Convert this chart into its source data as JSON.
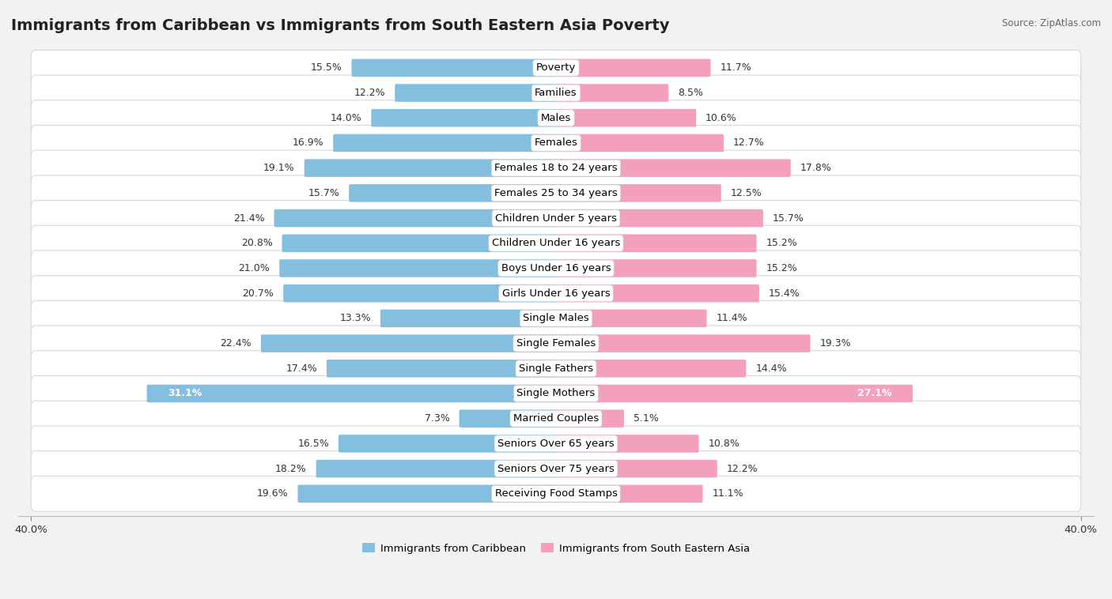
{
  "title": "Immigrants from Caribbean vs Immigrants from South Eastern Asia Poverty",
  "source": "Source: ZipAtlas.com",
  "categories": [
    "Poverty",
    "Families",
    "Males",
    "Females",
    "Females 18 to 24 years",
    "Females 25 to 34 years",
    "Children Under 5 years",
    "Children Under 16 years",
    "Boys Under 16 years",
    "Girls Under 16 years",
    "Single Males",
    "Single Females",
    "Single Fathers",
    "Single Mothers",
    "Married Couples",
    "Seniors Over 65 years",
    "Seniors Over 75 years",
    "Receiving Food Stamps"
  ],
  "left_values": [
    15.5,
    12.2,
    14.0,
    16.9,
    19.1,
    15.7,
    21.4,
    20.8,
    21.0,
    20.7,
    13.3,
    22.4,
    17.4,
    31.1,
    7.3,
    16.5,
    18.2,
    19.6
  ],
  "right_values": [
    11.7,
    8.5,
    10.6,
    12.7,
    17.8,
    12.5,
    15.7,
    15.2,
    15.2,
    15.4,
    11.4,
    19.3,
    14.4,
    27.1,
    5.1,
    10.8,
    12.2,
    11.1
  ],
  "left_color": "#85BFE0",
  "right_color": "#F2A0BC",
  "left_label": "Immigrants from Caribbean",
  "right_label": "Immigrants from South Eastern Asia",
  "xlim": 40.0,
  "bg_color": "#f2f2f2",
  "row_bg_color": "#ffffff",
  "row_border_color": "#d8d8d8",
  "title_fontsize": 14,
  "label_fontsize": 9.5,
  "value_fontsize": 9,
  "axis_label_fontsize": 9.5
}
